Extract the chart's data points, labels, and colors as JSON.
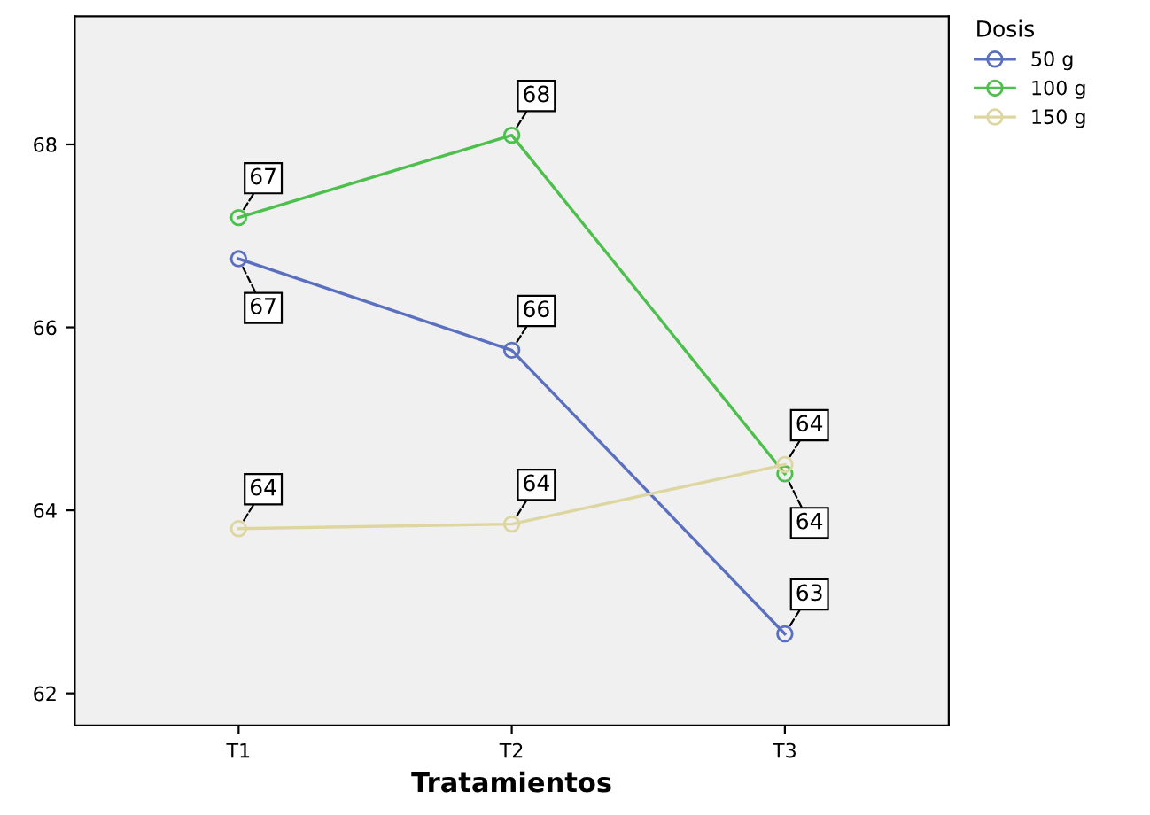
{
  "chart_data": {
    "type": "line",
    "xlabel": "Tratamientos",
    "legend_title": "Dosis",
    "categories": [
      "T1",
      "T2",
      "T3"
    ],
    "series": [
      {
        "name": "50 g",
        "color": "#5a6fbf",
        "values": [
          66.75,
          65.75,
          62.65
        ],
        "value_labels": [
          "67",
          "66",
          "63"
        ]
      },
      {
        "name": "100 g",
        "color": "#4cbf4c",
        "values": [
          67.2,
          68.1,
          64.4
        ],
        "value_labels": [
          "67",
          "68",
          "64"
        ]
      },
      {
        "name": "150 g",
        "color": "#ddd6a0",
        "values": [
          63.8,
          63.85,
          64.5
        ],
        "value_labels": [
          "64",
          "64",
          "64"
        ]
      }
    ],
    "ylim": [
      61.65,
      69.4
    ],
    "yticks": [
      62,
      64,
      66,
      68
    ],
    "grid": false,
    "legend": "right",
    "marker": "circle",
    "line_style": "solid"
  }
}
